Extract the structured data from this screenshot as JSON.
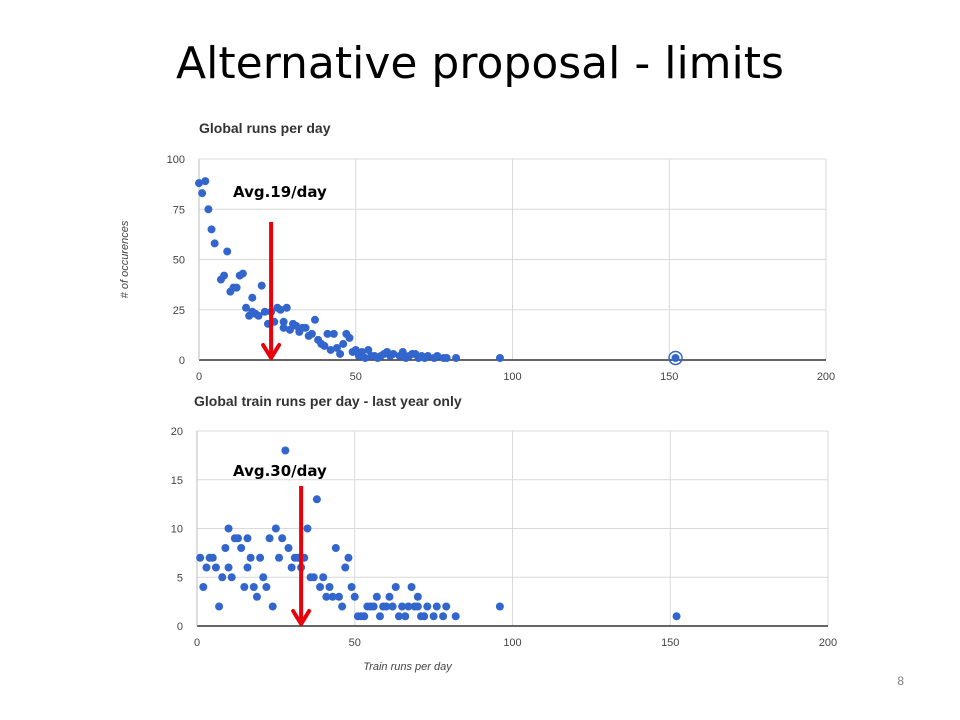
{
  "slide": {
    "title": "Alternative proposal - limits",
    "page_number": "8"
  },
  "chart_data": [
    {
      "type": "scatter",
      "title": "Global runs per day",
      "xlabel": "",
      "ylabel": "# of occurences",
      "xlim": [
        0,
        200
      ],
      "ylim": [
        0,
        100
      ],
      "xticks": [
        "0",
        "50",
        "100",
        "150",
        "200"
      ],
      "yticks": [
        "0",
        "25",
        "50",
        "75",
        "100"
      ],
      "grid": true,
      "color": "#3366cc",
      "annotation": {
        "text": "Avg.19/day",
        "x": 23,
        "arrow_color": "#e8000b"
      },
      "highlight": {
        "x": 152,
        "y": 1
      },
      "points": [
        [
          0,
          88
        ],
        [
          1,
          83
        ],
        [
          2,
          89
        ],
        [
          3,
          75
        ],
        [
          4,
          65
        ],
        [
          5,
          58
        ],
        [
          7,
          40
        ],
        [
          8,
          42
        ],
        [
          9,
          54
        ],
        [
          10,
          34
        ],
        [
          11,
          36
        ],
        [
          12,
          36
        ],
        [
          13,
          42
        ],
        [
          14,
          43
        ],
        [
          15,
          26
        ],
        [
          16,
          22
        ],
        [
          17,
          24
        ],
        [
          17,
          31
        ],
        [
          18,
          23
        ],
        [
          19,
          22
        ],
        [
          20,
          37
        ],
        [
          21,
          24
        ],
        [
          22,
          18
        ],
        [
          23,
          24
        ],
        [
          24,
          19
        ],
        [
          25,
          26
        ],
        [
          26,
          25
        ],
        [
          27,
          19
        ],
        [
          27,
          16
        ],
        [
          28,
          26
        ],
        [
          29,
          15
        ],
        [
          30,
          18
        ],
        [
          31,
          17
        ],
        [
          32,
          14
        ],
        [
          33,
          16
        ],
        [
          34,
          16
        ],
        [
          35,
          12
        ],
        [
          36,
          13
        ],
        [
          37,
          20
        ],
        [
          38,
          10
        ],
        [
          39,
          8
        ],
        [
          40,
          7
        ],
        [
          41,
          13
        ],
        [
          42,
          5
        ],
        [
          43,
          13
        ],
        [
          44,
          6
        ],
        [
          45,
          3
        ],
        [
          46,
          8
        ],
        [
          47,
          13
        ],
        [
          48,
          11
        ],
        [
          49,
          4
        ],
        [
          50,
          5
        ],
        [
          51,
          2
        ],
        [
          52,
          4
        ],
        [
          53,
          1
        ],
        [
          54,
          5
        ],
        [
          55,
          2
        ],
        [
          56,
          2
        ],
        [
          57,
          1
        ],
        [
          58,
          2
        ],
        [
          59,
          3
        ],
        [
          60,
          4
        ],
        [
          61,
          2
        ],
        [
          62,
          3
        ],
        [
          64,
          2
        ],
        [
          65,
          4
        ],
        [
          66,
          1
        ],
        [
          67,
          2
        ],
        [
          68,
          3
        ],
        [
          69,
          3
        ],
        [
          70,
          1
        ],
        [
          71,
          2
        ],
        [
          72,
          1
        ],
        [
          73,
          2
        ],
        [
          75,
          1
        ],
        [
          76,
          2
        ],
        [
          78,
          1
        ],
        [
          79,
          1
        ],
        [
          82,
          1
        ],
        [
          96,
          1
        ],
        [
          152,
          1
        ]
      ]
    },
    {
      "type": "scatter",
      "title": "Global train runs per day - last year only",
      "xlabel": "Train runs per day",
      "ylabel": "",
      "xlim": [
        0,
        200
      ],
      "ylim": [
        0,
        20
      ],
      "xticks": [
        "0",
        "50",
        "100",
        "150",
        "200"
      ],
      "yticks": [
        "0",
        "5",
        "10",
        "15",
        "20"
      ],
      "grid": true,
      "color": "#3366cc",
      "annotation": {
        "text": "Avg.30/day",
        "x": 33,
        "arrow_color": "#e8000b"
      },
      "points": [
        [
          1,
          7
        ],
        [
          2,
          4
        ],
        [
          3,
          6
        ],
        [
          4,
          7
        ],
        [
          5,
          7
        ],
        [
          6,
          6
        ],
        [
          7,
          2
        ],
        [
          8,
          5
        ],
        [
          9,
          8
        ],
        [
          10,
          10
        ],
        [
          10,
          6
        ],
        [
          11,
          5
        ],
        [
          12,
          9
        ],
        [
          13,
          9
        ],
        [
          14,
          8
        ],
        [
          15,
          4
        ],
        [
          16,
          9
        ],
        [
          16,
          6
        ],
        [
          17,
          7
        ],
        [
          18,
          4
        ],
        [
          19,
          3
        ],
        [
          20,
          7
        ],
        [
          21,
          5
        ],
        [
          22,
          4
        ],
        [
          23,
          9
        ],
        [
          24,
          2
        ],
        [
          25,
          10
        ],
        [
          26,
          7
        ],
        [
          27,
          9
        ],
        [
          28,
          18
        ],
        [
          29,
          8
        ],
        [
          30,
          6
        ],
        [
          31,
          7
        ],
        [
          32,
          7
        ],
        [
          33,
          6
        ],
        [
          34,
          7
        ],
        [
          35,
          10
        ],
        [
          36,
          5
        ],
        [
          37,
          5
        ],
        [
          38,
          13
        ],
        [
          39,
          4
        ],
        [
          40,
          5
        ],
        [
          41,
          3
        ],
        [
          42,
          4
        ],
        [
          43,
          3
        ],
        [
          44,
          8
        ],
        [
          45,
          3
        ],
        [
          46,
          2
        ],
        [
          47,
          6
        ],
        [
          48,
          7
        ],
        [
          49,
          4
        ],
        [
          50,
          3
        ],
        [
          51,
          1
        ],
        [
          52,
          1
        ],
        [
          53,
          1
        ],
        [
          54,
          2
        ],
        [
          55,
          2
        ],
        [
          56,
          2
        ],
        [
          57,
          3
        ],
        [
          58,
          1
        ],
        [
          59,
          2
        ],
        [
          60,
          2
        ],
        [
          61,
          3
        ],
        [
          62,
          2
        ],
        [
          63,
          4
        ],
        [
          64,
          1
        ],
        [
          65,
          2
        ],
        [
          66,
          1
        ],
        [
          67,
          2
        ],
        [
          68,
          4
        ],
        [
          69,
          2
        ],
        [
          70,
          3
        ],
        [
          70,
          2
        ],
        [
          71,
          1
        ],
        [
          72,
          1
        ],
        [
          73,
          2
        ],
        [
          75,
          1
        ],
        [
          76,
          2
        ],
        [
          78,
          1
        ],
        [
          79,
          2
        ],
        [
          82,
          1
        ],
        [
          96,
          2
        ],
        [
          152,
          1
        ]
      ]
    }
  ]
}
